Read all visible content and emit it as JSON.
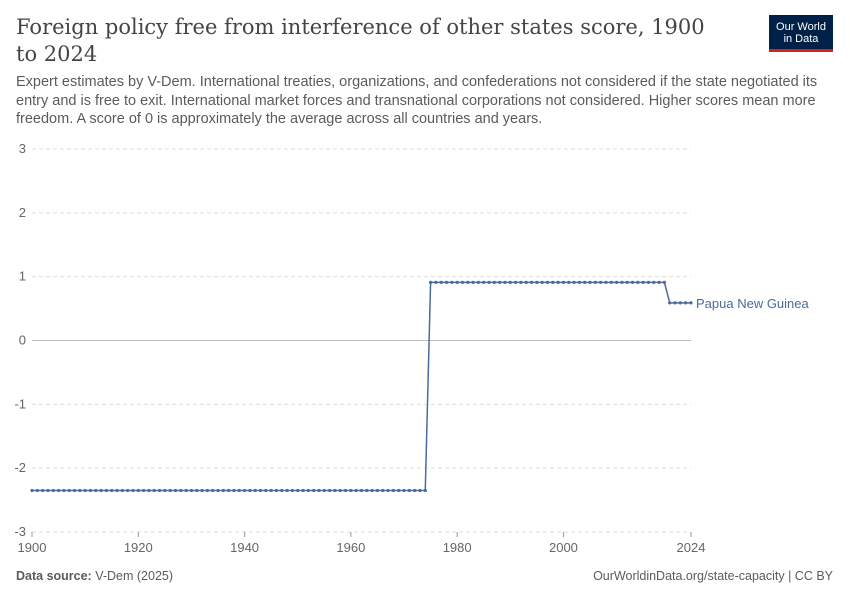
{
  "header": {
    "title": "Foreign policy free from interference of other states score, 1900 to 2024",
    "subtitle": "Expert estimates by V-Dem. International treaties, organizations, and confederations not considered if the state negotiated its entry and is free to exit. International market forces and transnational corporations not considered. Higher scores mean more freedom. A score of 0 is approximately the average across all countries and years.",
    "logo_line1": "Our World",
    "logo_line2": "in Data"
  },
  "footer": {
    "source_label": "Data source:",
    "source_value": "V-Dem (2025)",
    "credit": "OurWorldinData.org/state-capacity | CC BY"
  },
  "colors": {
    "series": "#4c6a9c",
    "grid": "#dddddd",
    "zero_line": "#bbbbbb",
    "logo_bg": "#002147",
    "logo_accent": "#ce261e"
  },
  "chart_data": {
    "type": "line",
    "x_ticks": [
      1900,
      1920,
      1940,
      1960,
      1980,
      2000,
      2024
    ],
    "y_ticks": [
      3,
      2,
      1,
      0,
      -1,
      -2,
      -3
    ],
    "xlim": [
      1900,
      2024
    ],
    "ylim": [
      -3,
      3
    ],
    "grid": true,
    "series": [
      {
        "name": "Papua New Guinea",
        "segments": [
          {
            "from": 1900,
            "to": 1974,
            "value": -2.35
          },
          {
            "from": 1975,
            "to": 2019,
            "value": 0.91
          },
          {
            "from": 2020,
            "to": 2024,
            "value": 0.59
          }
        ]
      }
    ]
  }
}
